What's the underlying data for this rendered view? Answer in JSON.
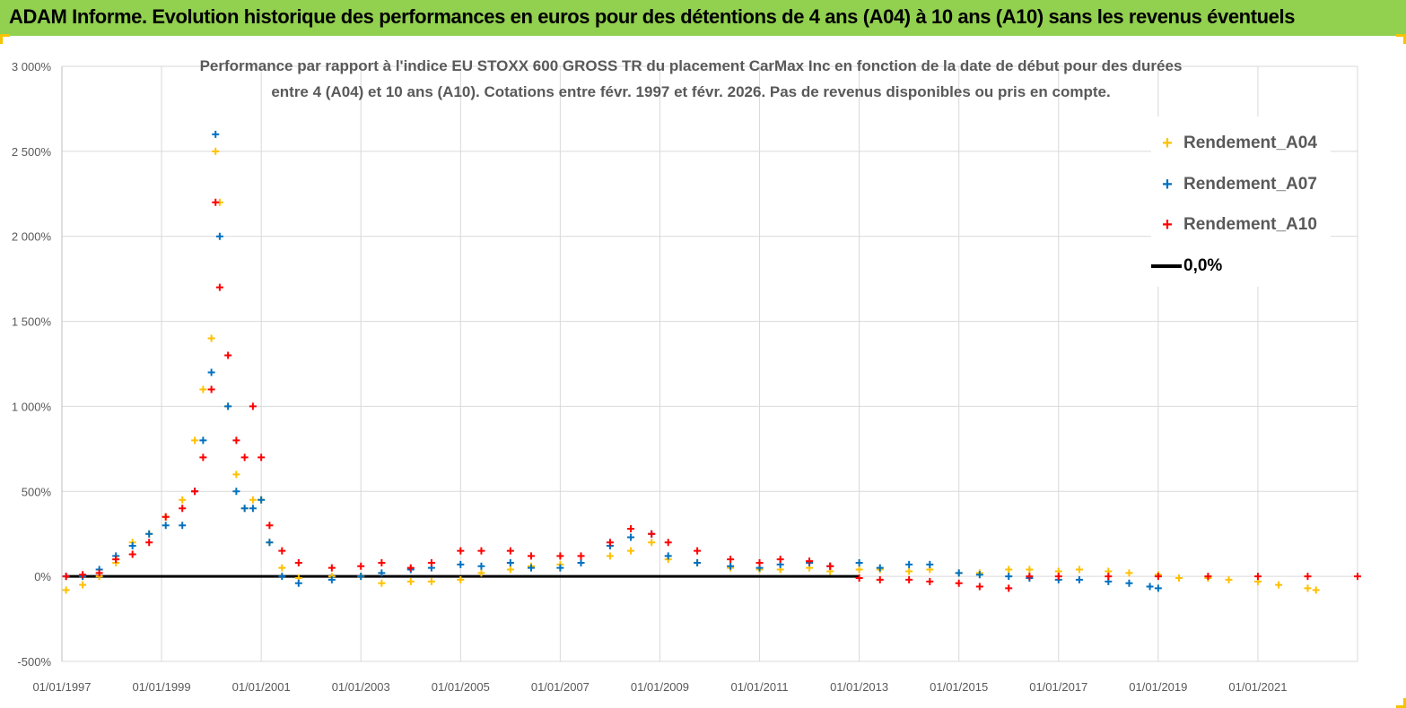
{
  "header": {
    "title": "ADAM Informe. Evolution historique des performances en euros pour des détentions de 4 ans (A04) à 10 ans (A10) sans les revenus éventuels"
  },
  "colors": {
    "banner": "#92d050",
    "a04": "#ffc000",
    "a07": "#0070c0",
    "a10": "#ff0000",
    "zero_line": "#000000",
    "grid": "#d9d9d9"
  },
  "chart_data": {
    "type": "scatter",
    "title_line1": "Performance par rapport à l'indice EU STOXX 600 GROSS TR  du placement CarMax Inc en fonction de la date de début pour des durées",
    "title_line2": "entre 4 (A04) et 10 ans (A10).  Cotations entre févr. 1997 et févr. 2026.  Pas de revenus disponibles ou pris en compte.",
    "xlabel": "",
    "ylabel": "",
    "ylim": [
      -500,
      3000
    ],
    "xlim": [
      "01/01/1997",
      "01/01/2023"
    ],
    "y_ticks": [
      "3 000%",
      "2 500%",
      "2 000%",
      "1 500%",
      "1 000%",
      "500%",
      "0%",
      "-500%"
    ],
    "x_ticks": [
      "01/01/1997",
      "01/01/1999",
      "01/01/2001",
      "01/01/2003",
      "01/01/2005",
      "01/01/2007",
      "01/01/2009",
      "01/01/2011",
      "01/01/2013",
      "01/01/2015",
      "01/01/2017",
      "01/01/2019",
      "01/01/2021"
    ],
    "grid": true,
    "legend_position": "top-right",
    "series": [
      {
        "name": "Rendement_A04",
        "marker": "+",
        "points": [
          [
            "1997-02",
            -80
          ],
          [
            "1997-06",
            -50
          ],
          [
            "1997-10",
            0
          ],
          [
            "1998-02",
            80
          ],
          [
            "1998-06",
            200
          ],
          [
            "1998-10",
            250
          ],
          [
            "1999-02",
            350
          ],
          [
            "1999-06",
            450
          ],
          [
            "1999-09",
            800
          ],
          [
            "1999-11",
            1100
          ],
          [
            "2000-01",
            1400
          ],
          [
            "2000-02",
            2500
          ],
          [
            "2000-03",
            2200
          ],
          [
            "2000-05",
            1000
          ],
          [
            "2000-07",
            600
          ],
          [
            "2000-09",
            400
          ],
          [
            "2000-11",
            450
          ],
          [
            "2001-01",
            450
          ],
          [
            "2001-03",
            200
          ],
          [
            "2001-06",
            50
          ],
          [
            "2001-10",
            -10
          ],
          [
            "2002-06",
            0
          ],
          [
            "2003-01",
            0
          ],
          [
            "2003-06",
            -40
          ],
          [
            "2004-01",
            -30
          ],
          [
            "2004-06",
            -30
          ],
          [
            "2005-01",
            -20
          ],
          [
            "2005-06",
            20
          ],
          [
            "2006-01",
            40
          ],
          [
            "2006-06",
            60
          ],
          [
            "2007-01",
            70
          ],
          [
            "2007-06",
            80
          ],
          [
            "2008-01",
            120
          ],
          [
            "2008-06",
            150
          ],
          [
            "2008-11",
            200
          ],
          [
            "2009-03",
            100
          ],
          [
            "2009-10",
            80
          ],
          [
            "2010-06",
            50
          ],
          [
            "2011-01",
            40
          ],
          [
            "2011-06",
            40
          ],
          [
            "2012-01",
            50
          ],
          [
            "2012-06",
            30
          ],
          [
            "2013-01",
            40
          ],
          [
            "2013-06",
            40
          ],
          [
            "2014-01",
            30
          ],
          [
            "2014-06",
            40
          ],
          [
            "2015-01",
            20
          ],
          [
            "2015-06",
            20
          ],
          [
            "2016-01",
            40
          ],
          [
            "2016-06",
            40
          ],
          [
            "2017-01",
            30
          ],
          [
            "2017-06",
            40
          ],
          [
            "2018-01",
            30
          ],
          [
            "2018-06",
            20
          ],
          [
            "2019-01",
            10
          ],
          [
            "2019-06",
            -10
          ],
          [
            "2020-01",
            -10
          ],
          [
            "2020-06",
            -20
          ],
          [
            "2021-01",
            -30
          ],
          [
            "2021-06",
            -50
          ],
          [
            "2022-01",
            -70
          ],
          [
            "2022-03",
            -80
          ]
        ]
      },
      {
        "name": "Rendement_A07",
        "marker": "+",
        "points": [
          [
            "1997-02",
            0
          ],
          [
            "1997-06",
            0
          ],
          [
            "1997-10",
            40
          ],
          [
            "1998-02",
            120
          ],
          [
            "1998-06",
            180
          ],
          [
            "1998-10",
            250
          ],
          [
            "1999-02",
            300
          ],
          [
            "1999-06",
            300
          ],
          [
            "1999-09",
            500
          ],
          [
            "1999-11",
            800
          ],
          [
            "2000-01",
            1200
          ],
          [
            "2000-02",
            2600
          ],
          [
            "2000-03",
            2000
          ],
          [
            "2000-05",
            1000
          ],
          [
            "2000-07",
            500
          ],
          [
            "2000-09",
            400
          ],
          [
            "2000-11",
            400
          ],
          [
            "2001-01",
            450
          ],
          [
            "2001-03",
            200
          ],
          [
            "2001-06",
            0
          ],
          [
            "2001-10",
            -40
          ],
          [
            "2002-06",
            -20
          ],
          [
            "2003-01",
            0
          ],
          [
            "2003-06",
            20
          ],
          [
            "2004-01",
            40
          ],
          [
            "2004-06",
            50
          ],
          [
            "2005-01",
            70
          ],
          [
            "2005-06",
            60
          ],
          [
            "2006-01",
            80
          ],
          [
            "2006-06",
            50
          ],
          [
            "2007-01",
            50
          ],
          [
            "2007-06",
            80
          ],
          [
            "2008-01",
            180
          ],
          [
            "2008-06",
            230
          ],
          [
            "2008-11",
            250
          ],
          [
            "2009-03",
            120
          ],
          [
            "2009-10",
            80
          ],
          [
            "2010-06",
            60
          ],
          [
            "2011-01",
            50
          ],
          [
            "2011-06",
            70
          ],
          [
            "2012-01",
            80
          ],
          [
            "2012-06",
            60
          ],
          [
            "2013-01",
            80
          ],
          [
            "2013-06",
            50
          ],
          [
            "2014-01",
            70
          ],
          [
            "2014-06",
            70
          ],
          [
            "2015-01",
            20
          ],
          [
            "2015-06",
            10
          ],
          [
            "2016-01",
            0
          ],
          [
            "2016-06",
            -10
          ],
          [
            "2017-01",
            -20
          ],
          [
            "2017-06",
            -20
          ],
          [
            "2018-01",
            -30
          ],
          [
            "2018-06",
            -40
          ],
          [
            "2018-11",
            -60
          ],
          [
            "2019-01",
            -70
          ]
        ]
      },
      {
        "name": "Rendement_A10",
        "marker": "+",
        "points": [
          [
            "1997-02",
            0
          ],
          [
            "1997-06",
            10
          ],
          [
            "1997-10",
            20
          ],
          [
            "1998-02",
            100
          ],
          [
            "1998-06",
            130
          ],
          [
            "1998-10",
            200
          ],
          [
            "1999-02",
            350
          ],
          [
            "1999-06",
            400
          ],
          [
            "1999-09",
            500
          ],
          [
            "1999-11",
            700
          ],
          [
            "2000-01",
            1100
          ],
          [
            "2000-02",
            2200
          ],
          [
            "2000-03",
            1700
          ],
          [
            "2000-05",
            1300
          ],
          [
            "2000-07",
            800
          ],
          [
            "2000-09",
            700
          ],
          [
            "2000-11",
            1000
          ],
          [
            "2001-01",
            700
          ],
          [
            "2001-03",
            300
          ],
          [
            "2001-06",
            150
          ],
          [
            "2001-10",
            80
          ],
          [
            "2002-06",
            50
          ],
          [
            "2003-01",
            60
          ],
          [
            "2003-06",
            80
          ],
          [
            "2004-01",
            50
          ],
          [
            "2004-06",
            80
          ],
          [
            "2005-01",
            150
          ],
          [
            "2005-06",
            150
          ],
          [
            "2006-01",
            150
          ],
          [
            "2006-06",
            120
          ],
          [
            "2007-01",
            120
          ],
          [
            "2007-06",
            120
          ],
          [
            "2008-01",
            200
          ],
          [
            "2008-06",
            280
          ],
          [
            "2008-11",
            250
          ],
          [
            "2009-03",
            200
          ],
          [
            "2009-10",
            150
          ],
          [
            "2010-06",
            100
          ],
          [
            "2011-01",
            80
          ],
          [
            "2011-06",
            100
          ],
          [
            "2012-01",
            90
          ],
          [
            "2012-06",
            60
          ],
          [
            "2013-01",
            -10
          ],
          [
            "2013-06",
            -20
          ],
          [
            "2014-01",
            -20
          ],
          [
            "2014-06",
            -30
          ],
          [
            "2015-01",
            -40
          ],
          [
            "2015-06",
            -60
          ],
          [
            "2016-01",
            -70
          ],
          [
            "2016-06",
            0
          ],
          [
            "2017-01",
            0
          ],
          [
            "2018-01",
            0
          ],
          [
            "2019-01",
            0
          ],
          [
            "2020-01",
            0
          ],
          [
            "2021-01",
            0
          ],
          [
            "2022-01",
            0
          ],
          [
            "2023-01",
            0
          ]
        ]
      }
    ],
    "reference_line": {
      "name": "0,0%",
      "y": 0
    }
  }
}
